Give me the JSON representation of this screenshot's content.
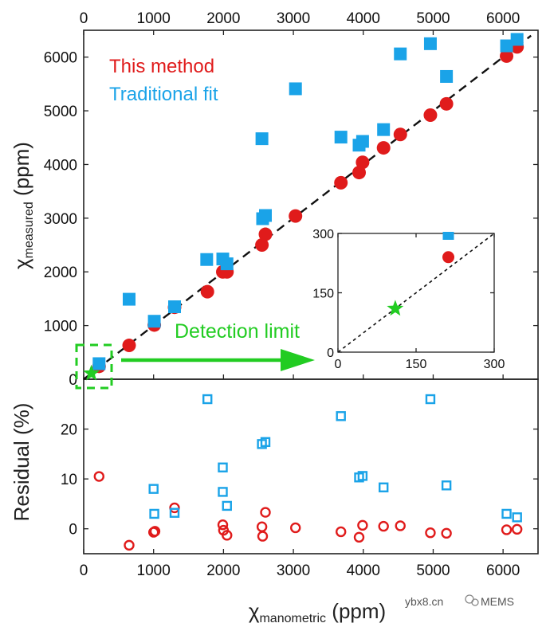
{
  "colors": {
    "this_method": "#e01b1b",
    "traditional": "#1aa3e8",
    "green": "#22cc22",
    "axis": "#222222"
  },
  "chart_data": {
    "type": "scatter",
    "title": "",
    "top_panel": {
      "xlabel_symbol": "χ",
      "xlabel_sub": "manometric",
      "xlabel_unit": "(ppm)",
      "ylabel_symbol": "χ",
      "ylabel_sub": "measured",
      "ylabel_unit": "(ppm)",
      "xlim": [
        0,
        6500
      ],
      "ylim": [
        0,
        6500
      ],
      "xticks": [
        0,
        1000,
        2000,
        3000,
        4000,
        5000,
        6000
      ],
      "yticks": [
        0,
        1000,
        2000,
        3000,
        4000,
        5000,
        6000
      ],
      "fit_line": {
        "name": "y = x",
        "style": "dashed"
      },
      "legend": [
        "This method",
        "Traditional fit"
      ],
      "annotation": "Detection limit",
      "series": [
        {
          "name": "This method",
          "marker": "circle",
          "points": [
            [
              220,
              240
            ],
            [
              650,
              630
            ],
            [
              1010,
              1010
            ],
            [
              1300,
              1340
            ],
            [
              1770,
              1630
            ],
            [
              1990,
              2000
            ],
            [
              2050,
              2000
            ],
            [
              2550,
              2500
            ],
            [
              2600,
              2700
            ],
            [
              3030,
              3040
            ],
            [
              3680,
              3660
            ],
            [
              3940,
              3850
            ],
            [
              3990,
              4040
            ],
            [
              4290,
              4310
            ],
            [
              4530,
              4560
            ],
            [
              4960,
              4920
            ],
            [
              5190,
              5130
            ],
            [
              6050,
              6020
            ],
            [
              6200,
              6190
            ]
          ]
        },
        {
          "name": "Traditional fit",
          "marker": "square",
          "points": [
            [
              220,
              290
            ],
            [
              650,
              1490
            ],
            [
              1010,
              1080
            ],
            [
              1300,
              1350
            ],
            [
              1760,
              2230
            ],
            [
              1990,
              2240
            ],
            [
              2050,
              2150
            ],
            [
              2550,
              4480
            ],
            [
              2560,
              2990
            ],
            [
              2600,
              3050
            ],
            [
              3030,
              5410
            ],
            [
              3680,
              4510
            ],
            [
              3940,
              4360
            ],
            [
              3990,
              4430
            ],
            [
              4290,
              4650
            ],
            [
              4530,
              6060
            ],
            [
              4960,
              6250
            ],
            [
              5190,
              5640
            ],
            [
              6050,
              6210
            ],
            [
              6200,
              6330
            ]
          ]
        }
      ]
    },
    "inset": {
      "xlim": [
        0,
        300
      ],
      "ylim": [
        0,
        300
      ],
      "xticks": [
        0,
        150,
        300
      ],
      "yticks": [
        0,
        150,
        300
      ],
      "fit_line": {
        "name": "y = x",
        "style": "dotted"
      },
      "series": [
        {
          "name": "Traditional fit",
          "marker": "square",
          "points": [
            [
              212,
              295
            ]
          ]
        },
        {
          "name": "This method",
          "marker": "circle",
          "points": [
            [
              212,
              240
            ]
          ]
        },
        {
          "name": "Detection limit",
          "marker": "star",
          "points": [
            [
              110,
              110
            ]
          ]
        }
      ]
    },
    "bottom_panel": {
      "ylabel": "Residual (%)",
      "xlim": [
        0,
        6500
      ],
      "ylim": [
        -5,
        30
      ],
      "yticks": [
        0,
        10,
        20
      ],
      "series": [
        {
          "name": "This method",
          "marker": "open-circle",
          "points": [
            [
              220,
              10.5
            ],
            [
              650,
              -3.3
            ],
            [
              1000,
              -0.7
            ],
            [
              1020,
              -0.5
            ],
            [
              1300,
              4.2
            ],
            [
              1990,
              0.8
            ],
            [
              2000,
              -0.3
            ],
            [
              2050,
              -1.3
            ],
            [
              2550,
              0.4
            ],
            [
              2560,
              -1.5
            ],
            [
              2600,
              3.3
            ],
            [
              3030,
              0.2
            ],
            [
              3680,
              -0.6
            ],
            [
              3940,
              -1.7
            ],
            [
              3990,
              0.7
            ],
            [
              4290,
              0.5
            ],
            [
              4530,
              0.6
            ],
            [
              4960,
              -0.8
            ],
            [
              5190,
              -0.9
            ],
            [
              6050,
              -0.2
            ],
            [
              6200,
              -0.1
            ]
          ]
        },
        {
          "name": "Traditional fit",
          "marker": "open-square",
          "points": [
            [
              1000,
              8.0
            ],
            [
              1010,
              3.0
            ],
            [
              1300,
              3.2
            ],
            [
              1770,
              26.0
            ],
            [
              1990,
              12.3
            ],
            [
              1990,
              7.4
            ],
            [
              2050,
              4.6
            ],
            [
              2550,
              17.0
            ],
            [
              2600,
              17.4
            ],
            [
              3680,
              22.6
            ],
            [
              3940,
              10.3
            ],
            [
              3990,
              10.6
            ],
            [
              4290,
              8.3
            ],
            [
              4960,
              26.0
            ],
            [
              5190,
              8.7
            ],
            [
              6050,
              3.0
            ],
            [
              6200,
              2.3
            ]
          ]
        }
      ]
    }
  },
  "watermark": {
    "site": "ybx8.cn",
    "brand": "MEMS"
  }
}
